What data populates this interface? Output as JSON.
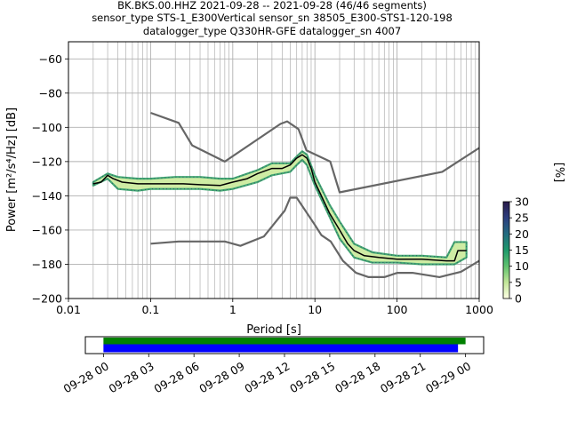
{
  "title_lines": [
    "BK.BKS.00.HHZ   2021-09-28 -- 2021-09-28  (46/46 segments)",
    "sensor_type STS-1_E300Vertical sensor_sn 38505_E300-STS1-120-198",
    "datalogger_type Q330HR-GFE datalogger_sn 4007"
  ],
  "colorbar": {
    "label": "[%]",
    "ticks": [
      "0",
      "5",
      "10",
      "15",
      "20",
      "25",
      "30"
    ],
    "range": [
      0,
      30
    ],
    "colors": [
      "#ffffe5",
      "#c2e699",
      "#5fc16e",
      "#1e9a6b",
      "#236b80",
      "#2c3e7e",
      "#2a1a4a"
    ]
  },
  "chart_data": [
    {
      "type": "line",
      "title": "BK.BKS.00.HHZ   2021-09-28 -- 2021-09-28  (46/46 segments)",
      "xlabel": "Period [s]",
      "ylabel": "Power [m²/s⁴/Hz] [dB]",
      "xscale": "log",
      "xlim": [
        0.01,
        1000
      ],
      "ylim": [
        -200,
        -50
      ],
      "grid": true,
      "xticks": [
        {
          "value": 0.01,
          "label": "0.01"
        },
        {
          "value": 0.1,
          "label": "0.1"
        },
        {
          "value": 1,
          "label": "1"
        },
        {
          "value": 10,
          "label": "10"
        },
        {
          "value": 100,
          "label": "100"
        },
        {
          "value": 1000,
          "label": "1000"
        }
      ],
      "yticks": [
        {
          "value": -60,
          "label": "−60"
        },
        {
          "value": -80,
          "label": "−80"
        },
        {
          "value": -100,
          "label": "−100"
        },
        {
          "value": -120,
          "label": "−120"
        },
        {
          "value": -140,
          "label": "−140"
        },
        {
          "value": -160,
          "label": "−160"
        },
        {
          "value": -180,
          "label": "−180"
        },
        {
          "value": -200,
          "label": "−200"
        }
      ],
      "series": [
        {
          "role": "nhnm",
          "color": "#666666",
          "x": [
            0.1,
            0.22,
            0.32,
            0.8,
            3.8,
            4.6,
            6.3,
            7.9,
            15.4,
            20,
            354.8,
            1000
          ],
          "y": [
            -91.5,
            -97.4,
            -110.5,
            -120,
            -98,
            -96.5,
            -101,
            -113.5,
            -120,
            -138,
            -126,
            -112
          ]
        },
        {
          "role": "nlnm",
          "color": "#666666",
          "x": [
            0.1,
            0.22,
            0.8,
            1.24,
            2.4,
            4.3,
            5,
            6,
            10,
            12,
            15.6,
            21.9,
            31.6,
            45,
            70,
            101,
            154,
            328,
            600,
            1000
          ],
          "y": [
            -168,
            -166.7,
            -166.7,
            -169.2,
            -163.7,
            -148.6,
            -141.1,
            -141.1,
            -157,
            -163,
            -166.7,
            -178,
            -185,
            -187.5,
            -187.5,
            -185,
            -185,
            -187.5,
            -184.4,
            -178
          ]
        },
        {
          "role": "mean",
          "color": "#000000",
          "x": [
            0.02,
            0.025,
            0.03,
            0.035,
            0.045,
            0.07,
            0.1,
            0.15,
            0.25,
            0.4,
            0.7,
            1.0,
            1.5,
            2.0,
            3.0,
            4.0,
            5.0,
            6.0,
            7.0,
            8.0,
            9.0,
            10,
            12,
            15,
            20,
            25,
            30,
            40,
            60,
            100,
            200,
            400,
            500,
            550,
            700
          ],
          "y": [
            -133,
            -132,
            -128,
            -130,
            -132,
            -133,
            -133,
            -133,
            -133,
            -133.5,
            -134,
            -132,
            -130,
            -127,
            -124,
            -124,
            -122,
            -118,
            -116,
            -118,
            -124,
            -132,
            -140,
            -150,
            -160,
            -168,
            -172,
            -175,
            -176,
            -177,
            -177,
            -178,
            -178,
            -172,
            -172
          ]
        },
        {
          "role": "ppsd-upper",
          "color": "#2e7d5b",
          "x": [
            0.02,
            0.03,
            0.04,
            0.07,
            0.1,
            0.2,
            0.4,
            0.7,
            1.0,
            2.0,
            3.0,
            5.0,
            6.0,
            7.0,
            8.0,
            10,
            15,
            20,
            30,
            50,
            100,
            200,
            400,
            500,
            700
          ],
          "y": [
            -132,
            -127,
            -129,
            -130,
            -130,
            -129,
            -129,
            -130,
            -130,
            -125,
            -121,
            -121,
            -117,
            -114,
            -116,
            -128,
            -145,
            -155,
            -168,
            -173,
            -175,
            -175,
            -176,
            -167,
            -167
          ]
        },
        {
          "role": "ppsd-lower",
          "color": "#2e7d5b",
          "x": [
            0.02,
            0.03,
            0.04,
            0.07,
            0.1,
            0.2,
            0.4,
            0.7,
            1.0,
            2.0,
            3.0,
            5.0,
            6.0,
            7.0,
            8.0,
            10,
            15,
            20,
            30,
            50,
            100,
            200,
            400,
            500,
            700
          ],
          "y": [
            -134,
            -130,
            -136,
            -137,
            -136,
            -136,
            -136,
            -137,
            -136,
            -132,
            -128,
            -126,
            -122,
            -119,
            -122,
            -134,
            -152,
            -165,
            -176,
            -179,
            -179,
            -180,
            -180,
            -180,
            -176
          ]
        }
      ]
    },
    {
      "type": "bar",
      "orientation": "horizontal",
      "xticks": [
        {
          "value": 0,
          "label": "09-28 00"
        },
        {
          "value": 3,
          "label": "09-28 03"
        },
        {
          "value": 6,
          "label": "09-28 06"
        },
        {
          "value": 9,
          "label": "09-28 09"
        },
        {
          "value": 12,
          "label": "09-28 12"
        },
        {
          "value": 15,
          "label": "09-28 15"
        },
        {
          "value": 18,
          "label": "09-28 18"
        },
        {
          "value": 21,
          "label": "09-28 21"
        },
        {
          "value": 24,
          "label": "09-29 00"
        }
      ],
      "xlim": [
        -1.2,
        25.2
      ],
      "series": [
        {
          "role": "coverage-top",
          "color": "#008000",
          "start": 0,
          "end": 24
        },
        {
          "role": "coverage-bottom",
          "color": "#0000ff",
          "start": 0,
          "end": 23.5
        }
      ]
    }
  ]
}
